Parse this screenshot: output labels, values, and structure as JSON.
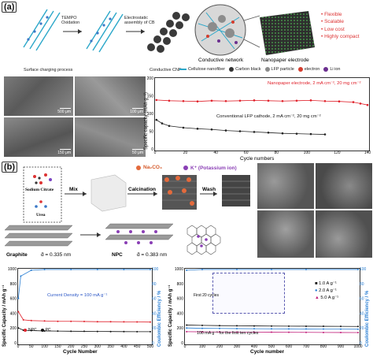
{
  "panels": {
    "a": "(a)",
    "b": "(b)"
  },
  "a": {
    "tempo": "TEMPO\nOxidation",
    "electro": "Electrostatic\nassembly of CB",
    "surface_process": "Surface charging process",
    "conductive_cnf": "Conductive CNF",
    "conductive_network": "Conductive network",
    "nanopaper_electrode": "Nanopaper electrode",
    "features": [
      "Flexible",
      "Scalable",
      "Low cost",
      "Highly compact"
    ],
    "legend": [
      "Cellulose nanofiber",
      "Carbon black",
      "LFP particle",
      "electron",
      "Li ion"
    ],
    "legend_colors": [
      "#2aa7c9",
      "#333333",
      "#8c8c8c",
      "#d33d2e",
      "#6b2f8f"
    ],
    "sem_scales": [
      "500 μm",
      "100 μm",
      "150 μm",
      "50 μm"
    ]
  },
  "chart_a": {
    "type": "scatter",
    "ylabel": "Specific capacity (mAh g⁻¹)",
    "xlabel": "Cycle numbers",
    "xticks": [
      "0",
      "20",
      "40",
      "60",
      "80",
      "100",
      "120",
      "140"
    ],
    "yticks": [
      "0",
      "50",
      "100",
      "150",
      "200"
    ],
    "xlim": [
      0,
      150
    ],
    "ylim": [
      0,
      200
    ],
    "series": [
      {
        "name": "Nanopaper electrode, 2 mA cm⁻², 20 mg cm⁻²",
        "color": "#e0202a",
        "x": [
          1,
          10,
          20,
          30,
          40,
          50,
          60,
          70,
          80,
          90,
          100,
          110,
          120,
          130,
          140,
          145,
          150
        ],
        "y": [
          138,
          136,
          135,
          134,
          136,
          135,
          136,
          137,
          136,
          135,
          136,
          137,
          135,
          134,
          132,
          128,
          124
        ]
      },
      {
        "name": "Conventional LFP cathode, 2 mA cm⁻², 20 mg cm⁻²",
        "color": "#222222",
        "x": [
          1,
          5,
          10,
          20,
          30,
          40,
          50,
          60,
          70,
          80,
          90,
          100,
          110,
          120
        ],
        "y": [
          82,
          72,
          65,
          60,
          57,
          55,
          52,
          50,
          48,
          46,
          44,
          43,
          42,
          41
        ]
      }
    ]
  },
  "b": {
    "sodium_citrate": "Sodium Citrate",
    "urea": "Urea",
    "mix": "Mix",
    "calcination": "Calcination",
    "wash": "Wash",
    "na2co3": "Na₂CO₃",
    "kplus": "K⁺ (Potassium ion)",
    "graphite": "Graphite",
    "d_graphite": "d̄ = 0.335 nm",
    "npc": "NPC",
    "d_npc": "d̄ = 0.383 nm"
  },
  "chart_b1": {
    "type": "scatter",
    "ylabel": "Specific Capacity / mAh g⁻¹",
    "y2label": "Coulombic Efficiency / %",
    "xlabel": "Cycle Number",
    "xticks": [
      "0",
      "50",
      "100",
      "150",
      "200",
      "250",
      "300",
      "350",
      "400",
      "450",
      "500"
    ],
    "yticks": [
      "0",
      "200",
      "400",
      "600",
      "800",
      "1000"
    ],
    "y2ticks": [
      "0",
      "20",
      "40",
      "60",
      "80",
      "100"
    ],
    "annotation": "Current Density = 100 mA g⁻¹",
    "legend": [
      "NPC",
      "PC"
    ],
    "xlim": [
      0,
      500
    ],
    "ylim": [
      0,
      1000
    ],
    "series": [
      {
        "name": "NPC",
        "color": "#e0202a",
        "x": [
          1,
          20,
          50,
          100,
          150,
          200,
          250,
          300,
          350,
          400,
          450,
          500
        ],
        "y": [
          420,
          310,
          300,
          295,
          290,
          290,
          288,
          285,
          285,
          283,
          282,
          280
        ]
      },
      {
        "name": "PC",
        "color": "#111111",
        "x": [
          1,
          20,
          50,
          100,
          150,
          200,
          250,
          300,
          350,
          400,
          450,
          500
        ],
        "y": [
          200,
          170,
          165,
          160,
          158,
          156,
          155,
          153,
          152,
          151,
          150,
          150
        ]
      },
      {
        "name": "CE",
        "color": "#2a7fd4",
        "x": [
          1,
          10,
          50,
          100,
          200,
          300,
          400,
          500
        ],
        "y": [
          60,
          90,
          98,
          99,
          99,
          99,
          99,
          99
        ]
      }
    ]
  },
  "chart_b2": {
    "type": "scatter",
    "ylabel": "Specific Capacity / mAh g⁻¹",
    "y2label": "Coulombic Efficiency / %",
    "xlabel": "Cycle number",
    "xticks": [
      "0",
      "100",
      "200",
      "300",
      "400",
      "500",
      "600",
      "700",
      "800",
      "900",
      "1000"
    ],
    "yticks": [
      "0",
      "200",
      "400",
      "600",
      "800",
      "1000"
    ],
    "y2ticks": [
      "0",
      "20",
      "40",
      "60",
      "80",
      "100"
    ],
    "annotation": "100 mA g⁻¹ for the first ten cycles",
    "inset_label": "First 20 cycles",
    "legend": [
      "1.0 A g⁻¹",
      "2.0 A g⁻¹",
      "5.0 A g⁻¹"
    ],
    "xlim": [
      0,
      1000
    ],
    "ylim": [
      0,
      1000
    ],
    "series": [
      {
        "name": "1.0 A g⁻¹",
        "color": "#111111",
        "x": [
          10,
          100,
          200,
          300,
          400,
          500,
          600,
          700,
          800,
          900,
          1000
        ],
        "y": [
          240,
          235,
          232,
          230,
          228,
          226,
          225,
          224,
          223,
          222,
          221
        ]
      },
      {
        "name": "2.0 A g⁻¹",
        "color": "#2a7fd4",
        "x": [
          10,
          100,
          200,
          300,
          400,
          500,
          600,
          700,
          800,
          900,
          1000
        ],
        "y": [
          200,
          196,
          194,
          192,
          190,
          189,
          188,
          187,
          186,
          185,
          184
        ]
      },
      {
        "name": "5.0 A g⁻¹",
        "color": "#c21f7a",
        "x": [
          10,
          100,
          200,
          300,
          400,
          500,
          600,
          700,
          800,
          900,
          1000
        ],
        "y": [
          150,
          148,
          146,
          145,
          144,
          143,
          142,
          141,
          140,
          139,
          138
        ]
      },
      {
        "name": "CE",
        "color": "#2a7fd4",
        "x": [
          10,
          100,
          300,
          500,
          700,
          1000
        ],
        "y": [
          98,
          99,
          99,
          99,
          99,
          99
        ]
      }
    ]
  }
}
